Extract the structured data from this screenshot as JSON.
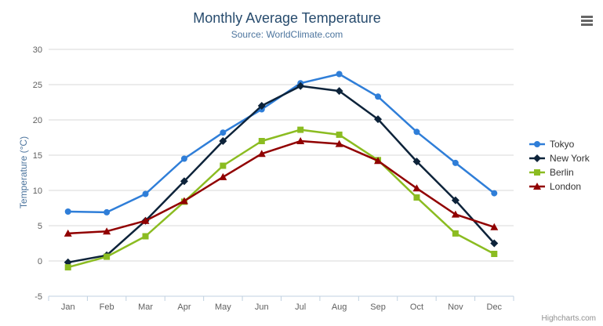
{
  "chart_data": {
    "type": "line",
    "title": "Monthly Average Temperature",
    "subtitle": "Source: WorldClimate.com",
    "xlabel": "",
    "ylabel": "Temperature (°C)",
    "ylim": [
      -5,
      30
    ],
    "yticks": [
      -5,
      0,
      5,
      10,
      15,
      20,
      25,
      30
    ],
    "grid": "horizontal-only",
    "legend_position": "right",
    "categories": [
      "Jan",
      "Feb",
      "Mar",
      "Apr",
      "May",
      "Jun",
      "Jul",
      "Aug",
      "Sep",
      "Oct",
      "Nov",
      "Dec"
    ],
    "series": [
      {
        "name": "Tokyo",
        "color": "#2f7ed8",
        "marker": "circle",
        "values": [
          7.0,
          6.9,
          9.5,
          14.5,
          18.2,
          21.5,
          25.2,
          26.5,
          23.3,
          18.3,
          13.9,
          9.6
        ]
      },
      {
        "name": "New York",
        "color": "#0d233a",
        "marker": "diamond",
        "values": [
          -0.2,
          0.8,
          5.7,
          11.3,
          17.0,
          22.0,
          24.8,
          24.1,
          20.1,
          14.1,
          8.6,
          2.5
        ]
      },
      {
        "name": "Berlin",
        "color": "#8bbc21",
        "marker": "square",
        "values": [
          -0.9,
          0.6,
          3.5,
          8.4,
          13.5,
          17.0,
          18.6,
          17.9,
          14.3,
          9.0,
          3.9,
          1.0
        ]
      },
      {
        "name": "London",
        "color": "#910000",
        "marker": "triangle",
        "values": [
          3.9,
          4.2,
          5.7,
          8.5,
          11.9,
          15.2,
          17.0,
          16.6,
          14.2,
          10.3,
          6.6,
          4.8
        ]
      }
    ]
  },
  "credit_label": "Highcharts.com",
  "icons": {
    "export_menu": "hamburger-menu-icon"
  },
  "theme": {
    "title_color": "#274b6d",
    "subtitle_color": "#4d759e",
    "axis_title_color": "#4d759e",
    "axis_label_color": "#606060",
    "grid_color": "#d8d8d8",
    "axis_line_color": "#c0d0e0",
    "legend_text_color": "#333333",
    "credit_color": "#909090",
    "menu_icon_color": "#666666",
    "background": "#ffffff"
  }
}
